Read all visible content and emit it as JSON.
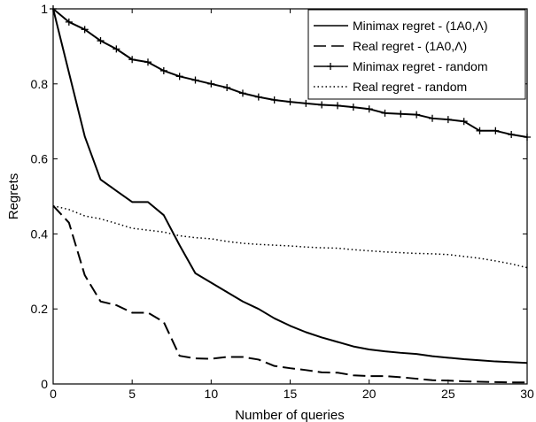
{
  "chart_data": {
    "type": "line",
    "title": "",
    "xlabel": "Number of queries",
    "ylabel": "Regrets",
    "xlim": [
      0,
      30
    ],
    "ylim": [
      0,
      1
    ],
    "xticks": [
      0,
      5,
      10,
      15,
      20,
      25,
      30
    ],
    "yticks": [
      0,
      0.2,
      0.4,
      0.6,
      0.8,
      1
    ],
    "xtick_labels": [
      "0",
      "5",
      "10",
      "15",
      "20",
      "25",
      "30"
    ],
    "ytick_labels": [
      "0",
      "0.2",
      "0.4",
      "0.6",
      "0.8",
      "1"
    ],
    "grid": false,
    "legend_position": "top-right",
    "x": [
      0,
      1,
      2,
      3,
      4,
      5,
      6,
      7,
      8,
      9,
      10,
      11,
      12,
      13,
      14,
      15,
      16,
      17,
      18,
      19,
      20,
      21,
      22,
      23,
      24,
      25,
      26,
      27,
      28,
      29,
      30
    ],
    "series": [
      {
        "name": "Minimax regret - (1A0,Λ)",
        "style": "solid",
        "color": "#000000",
        "values": [
          1.0,
          0.83,
          0.66,
          0.545,
          0.515,
          0.485,
          0.485,
          0.45,
          0.37,
          0.295,
          0.27,
          0.245,
          0.22,
          0.2,
          0.175,
          0.155,
          0.138,
          0.124,
          0.112,
          0.1,
          0.092,
          0.087,
          0.083,
          0.08,
          0.074,
          0.07,
          0.066,
          0.063,
          0.06,
          0.058,
          0.056
        ]
      },
      {
        "name": "Real regret - (1A0,Λ)",
        "style": "dashed",
        "color": "#000000",
        "values": [
          0.475,
          0.43,
          0.29,
          0.22,
          0.21,
          0.19,
          0.19,
          0.165,
          0.075,
          0.068,
          0.067,
          0.072,
          0.072,
          0.065,
          0.048,
          0.042,
          0.037,
          0.031,
          0.03,
          0.023,
          0.021,
          0.021,
          0.018,
          0.014,
          0.01,
          0.009,
          0.007,
          0.006,
          0.005,
          0.004,
          0.004
        ]
      },
      {
        "name": "Minimax regret - random",
        "style": "solid-plus",
        "color": "#000000",
        "values": [
          1.0,
          0.965,
          0.945,
          0.915,
          0.893,
          0.865,
          0.858,
          0.835,
          0.82,
          0.81,
          0.8,
          0.79,
          0.775,
          0.765,
          0.757,
          0.752,
          0.748,
          0.744,
          0.742,
          0.738,
          0.733,
          0.722,
          0.72,
          0.718,
          0.708,
          0.705,
          0.7,
          0.675,
          0.675,
          0.665,
          0.658
        ]
      },
      {
        "name": "Real regret - random",
        "style": "dotted",
        "color": "#000000",
        "values": [
          0.475,
          0.465,
          0.448,
          0.44,
          0.428,
          0.415,
          0.41,
          0.405,
          0.395,
          0.39,
          0.387,
          0.38,
          0.375,
          0.372,
          0.37,
          0.368,
          0.365,
          0.363,
          0.362,
          0.358,
          0.355,
          0.352,
          0.35,
          0.348,
          0.347,
          0.345,
          0.34,
          0.335,
          0.328,
          0.32,
          0.31
        ]
      }
    ]
  }
}
